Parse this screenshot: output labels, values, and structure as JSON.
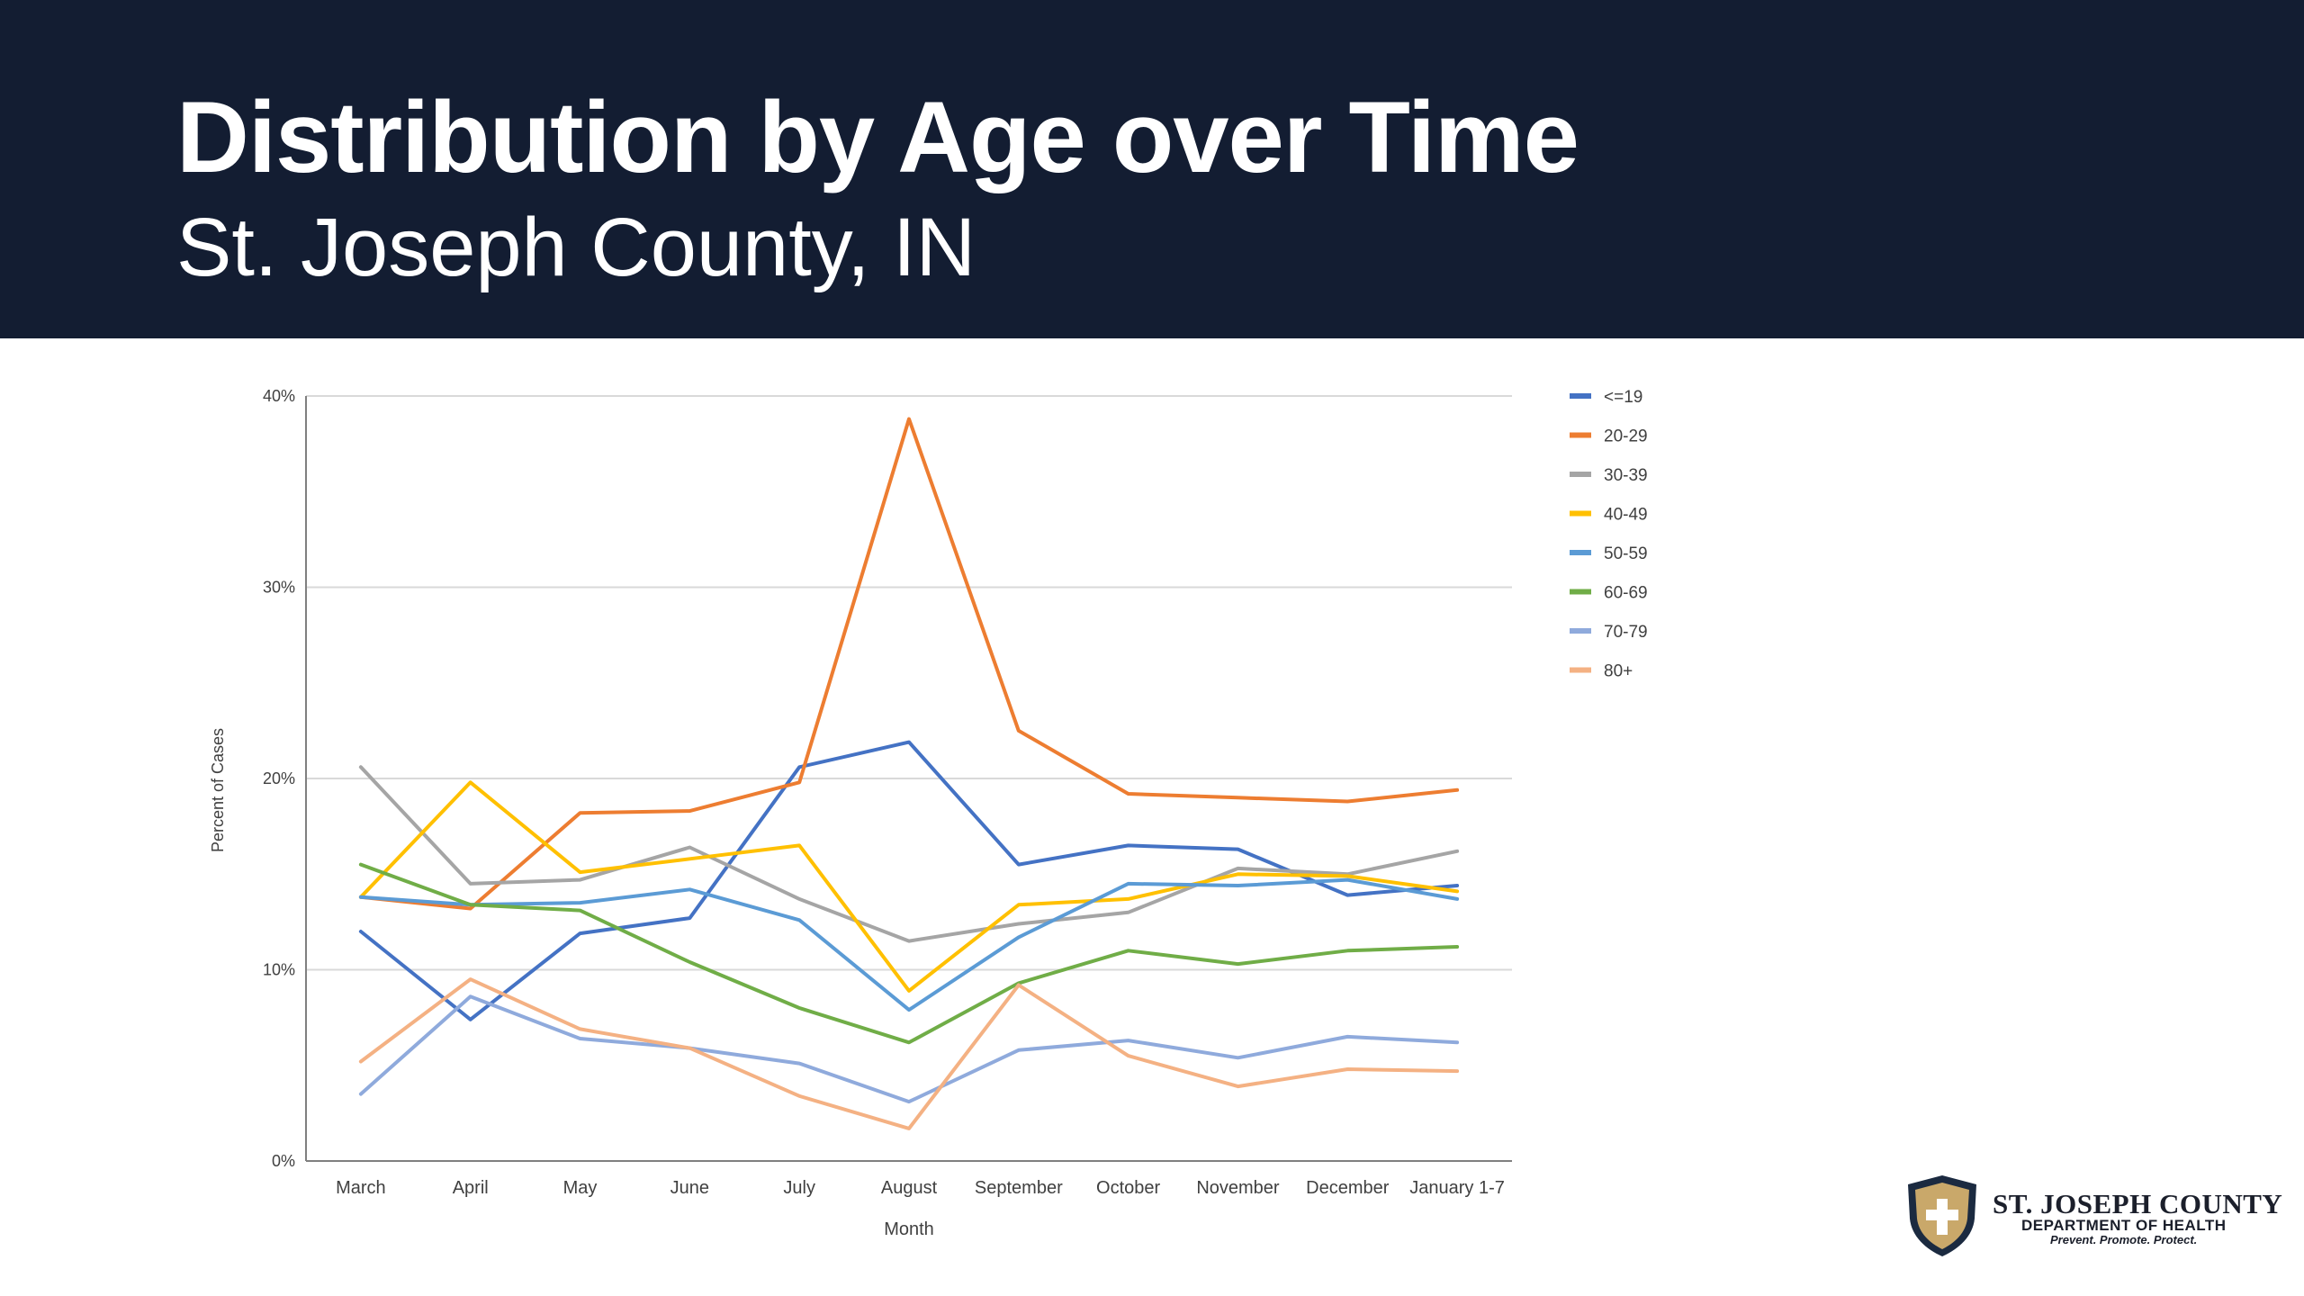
{
  "header": {
    "title": "Distribution by Age over Time",
    "subtitle": "St. Joseph County, IN"
  },
  "logo": {
    "name": "ST. JOSEPH COUNTY",
    "dept": "DEPARTMENT OF HEALTH",
    "tagline": "Prevent. Promote. Protect."
  },
  "colors": {
    "header_bg": "#131d32",
    "grid": "#d9d9d9",
    "axis": "#808080"
  },
  "chart_data": {
    "type": "line",
    "xlabel": "Month",
    "ylabel": "Percent of Cases",
    "ylim": [
      0,
      40
    ],
    "y_ticks": [
      "0%",
      "10%",
      "20%",
      "30%",
      "40%"
    ],
    "grid": true,
    "legend_position": "right",
    "categories": [
      "March",
      "April",
      "May",
      "June",
      "July",
      "August",
      "September",
      "October",
      "November",
      "December",
      "January 1-7"
    ],
    "series": [
      {
        "name": "<=19",
        "color": "#4472c4",
        "values": [
          12.0,
          7.4,
          11.9,
          12.7,
          20.6,
          21.9,
          15.5,
          16.5,
          16.3,
          13.9,
          14.4
        ]
      },
      {
        "name": "20-29",
        "color": "#ed7d31",
        "values": [
          13.8,
          13.2,
          18.2,
          18.3,
          19.8,
          38.8,
          22.5,
          19.2,
          19.0,
          18.8,
          19.4
        ]
      },
      {
        "name": "30-39",
        "color": "#a5a5a5",
        "values": [
          20.6,
          14.5,
          14.7,
          16.4,
          13.7,
          11.5,
          12.4,
          13.0,
          15.3,
          15.0,
          16.2
        ]
      },
      {
        "name": "40-49",
        "color": "#ffc000",
        "values": [
          13.8,
          19.8,
          15.1,
          15.8,
          16.5,
          8.9,
          13.4,
          13.7,
          15.0,
          14.9,
          14.1
        ]
      },
      {
        "name": "50-59",
        "color": "#5b9bd5",
        "values": [
          13.8,
          13.4,
          13.5,
          14.2,
          12.6,
          7.9,
          11.7,
          14.5,
          14.4,
          14.7,
          13.7
        ]
      },
      {
        "name": "60-69",
        "color": "#70ad47",
        "values": [
          15.5,
          13.4,
          13.1,
          10.4,
          8.0,
          6.2,
          9.3,
          11.0,
          10.3,
          11.0,
          11.2
        ]
      },
      {
        "name": "70-79",
        "color": "#8faadc",
        "values": [
          3.5,
          8.6,
          6.4,
          5.9,
          5.1,
          3.1,
          5.8,
          6.3,
          5.4,
          6.5,
          6.2
        ]
      },
      {
        "name": "80+",
        "color": "#f4b183",
        "values": [
          5.2,
          9.5,
          6.9,
          5.9,
          3.4,
          1.7,
          9.2,
          5.5,
          3.9,
          4.8,
          4.7
        ]
      }
    ]
  }
}
